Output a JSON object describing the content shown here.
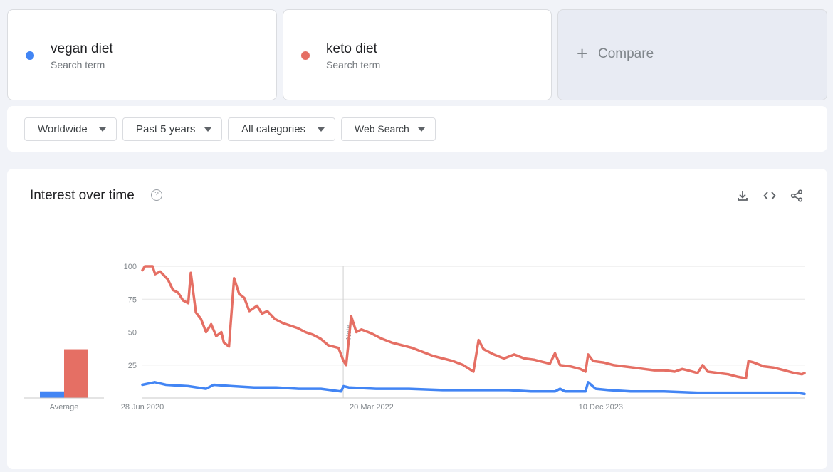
{
  "terms": [
    {
      "name": "vegan diet",
      "sub": "Search term",
      "color": "#4285f4"
    },
    {
      "name": "keto diet",
      "sub": "Search term",
      "color": "#e56f64"
    }
  ],
  "compare": {
    "label": "Compare",
    "icon": "plus-icon"
  },
  "filters": [
    {
      "label": "Worldwide"
    },
    {
      "label": "Past 5 years"
    },
    {
      "label": "All categories"
    },
    {
      "label": "Web Search"
    }
  ],
  "card": {
    "title": "Interest over time",
    "help_icon": "help-icon",
    "help_glyph": "?",
    "actions": [
      "download-icon",
      "embed-icon",
      "share-icon"
    ]
  },
  "chart_data": {
    "type": "line",
    "xlim": [
      "2020-06-28",
      "2025-06-22"
    ],
    "ylim": [
      0,
      100
    ],
    "yticks": [
      25,
      50,
      75,
      100
    ],
    "x_tick_labels": [
      {
        "label": "28 Jun 2020",
        "date": "2020-06-28"
      },
      {
        "label": "20 Mar 2022",
        "date": "2022-03-20"
      },
      {
        "label": "10 Dec 2023",
        "date": "2023-12-10"
      }
    ],
    "annotation": {
      "label": "Note",
      "date": "2022-01-01"
    },
    "grid": true,
    "series": [
      {
        "name": "vegan diet",
        "color": "#4285f4",
        "average": 5,
        "points": [
          [
            "2020-06-28",
            10
          ],
          [
            "2020-08-01",
            12
          ],
          [
            "2020-09-01",
            10
          ],
          [
            "2020-11-01",
            9
          ],
          [
            "2020-12-20",
            7
          ],
          [
            "2021-01-10",
            10
          ],
          [
            "2021-03-01",
            9
          ],
          [
            "2021-05-01",
            8
          ],
          [
            "2021-07-01",
            8
          ],
          [
            "2021-09-01",
            7
          ],
          [
            "2021-11-01",
            7
          ],
          [
            "2021-12-26",
            5
          ],
          [
            "2022-01-02",
            9
          ],
          [
            "2022-01-16",
            8
          ],
          [
            "2022-04-01",
            7
          ],
          [
            "2022-07-01",
            7
          ],
          [
            "2022-10-01",
            6
          ],
          [
            "2022-12-01",
            6
          ],
          [
            "2023-02-01",
            6
          ],
          [
            "2023-04-01",
            6
          ],
          [
            "2023-06-01",
            5
          ],
          [
            "2023-08-06",
            5
          ],
          [
            "2023-08-20",
            7
          ],
          [
            "2023-09-03",
            5
          ],
          [
            "2023-10-29",
            5
          ],
          [
            "2023-11-05",
            12
          ],
          [
            "2023-11-26",
            7
          ],
          [
            "2024-01-01",
            6
          ],
          [
            "2024-03-01",
            5
          ],
          [
            "2024-06-01",
            5
          ],
          [
            "2024-09-01",
            4
          ],
          [
            "2024-12-01",
            4
          ],
          [
            "2025-02-01",
            4
          ],
          [
            "2025-04-01",
            4
          ],
          [
            "2025-06-01",
            4
          ],
          [
            "2025-06-22",
            3
          ]
        ]
      },
      {
        "name": "keto diet",
        "color": "#e56f64",
        "average": 37,
        "points": [
          [
            "2020-06-28",
            97
          ],
          [
            "2020-07-05",
            100
          ],
          [
            "2020-07-26",
            100
          ],
          [
            "2020-08-02",
            94
          ],
          [
            "2020-08-16",
            96
          ],
          [
            "2020-09-06",
            90
          ],
          [
            "2020-09-20",
            82
          ],
          [
            "2020-10-04",
            80
          ],
          [
            "2020-10-18",
            74
          ],
          [
            "2020-11-01",
            72
          ],
          [
            "2020-11-08",
            95
          ],
          [
            "2020-11-22",
            65
          ],
          [
            "2020-12-06",
            60
          ],
          [
            "2020-12-20",
            50
          ],
          [
            "2021-01-03",
            56
          ],
          [
            "2021-01-17",
            47
          ],
          [
            "2021-01-31",
            50
          ],
          [
            "2021-02-07",
            42
          ],
          [
            "2021-02-21",
            39
          ],
          [
            "2021-03-07",
            91
          ],
          [
            "2021-03-21",
            79
          ],
          [
            "2021-04-04",
            76
          ],
          [
            "2021-04-18",
            66
          ],
          [
            "2021-05-09",
            70
          ],
          [
            "2021-05-23",
            64
          ],
          [
            "2021-06-06",
            66
          ],
          [
            "2021-06-27",
            60
          ],
          [
            "2021-07-18",
            57
          ],
          [
            "2021-08-08",
            55
          ],
          [
            "2021-08-29",
            53
          ],
          [
            "2021-09-19",
            50
          ],
          [
            "2021-10-10",
            48
          ],
          [
            "2021-10-31",
            45
          ],
          [
            "2021-11-21",
            40
          ],
          [
            "2021-12-19",
            38
          ],
          [
            "2022-01-02",
            28
          ],
          [
            "2022-01-09",
            25
          ],
          [
            "2022-01-23",
            62
          ],
          [
            "2022-02-06",
            50
          ],
          [
            "2022-02-20",
            52
          ],
          [
            "2022-03-20",
            49
          ],
          [
            "2022-04-17",
            45
          ],
          [
            "2022-05-15",
            42
          ],
          [
            "2022-06-12",
            40
          ],
          [
            "2022-07-10",
            38
          ],
          [
            "2022-08-07",
            35
          ],
          [
            "2022-09-04",
            32
          ],
          [
            "2022-10-02",
            30
          ],
          [
            "2022-10-30",
            28
          ],
          [
            "2022-11-27",
            25
          ],
          [
            "2022-12-25",
            20
          ],
          [
            "2023-01-08",
            44
          ],
          [
            "2023-01-22",
            37
          ],
          [
            "2023-02-19",
            33
          ],
          [
            "2023-03-19",
            30
          ],
          [
            "2023-04-16",
            33
          ],
          [
            "2023-05-14",
            30
          ],
          [
            "2023-06-11",
            29
          ],
          [
            "2023-07-09",
            27
          ],
          [
            "2023-07-23",
            26
          ],
          [
            "2023-08-06",
            34
          ],
          [
            "2023-08-20",
            25
          ],
          [
            "2023-09-17",
            24
          ],
          [
            "2023-10-15",
            22
          ],
          [
            "2023-10-29",
            20
          ],
          [
            "2023-11-05",
            33
          ],
          [
            "2023-11-19",
            28
          ],
          [
            "2023-12-17",
            27
          ],
          [
            "2024-01-14",
            25
          ],
          [
            "2024-02-11",
            24
          ],
          [
            "2024-03-10",
            23
          ],
          [
            "2024-04-07",
            22
          ],
          [
            "2024-05-05",
            21
          ],
          [
            "2024-06-02",
            21
          ],
          [
            "2024-06-30",
            20
          ],
          [
            "2024-07-21",
            22
          ],
          [
            "2024-08-04",
            21
          ],
          [
            "2024-09-01",
            19
          ],
          [
            "2024-09-15",
            25
          ],
          [
            "2024-09-29",
            20
          ],
          [
            "2024-10-27",
            19
          ],
          [
            "2024-11-24",
            18
          ],
          [
            "2024-12-22",
            16
          ],
          [
            "2025-01-12",
            15
          ],
          [
            "2025-01-19",
            28
          ],
          [
            "2025-02-02",
            27
          ],
          [
            "2025-03-02",
            24
          ],
          [
            "2025-03-30",
            23
          ],
          [
            "2025-04-27",
            21
          ],
          [
            "2025-05-25",
            19
          ],
          [
            "2025-06-15",
            18
          ],
          [
            "2025-06-22",
            19
          ]
        ]
      }
    ]
  }
}
